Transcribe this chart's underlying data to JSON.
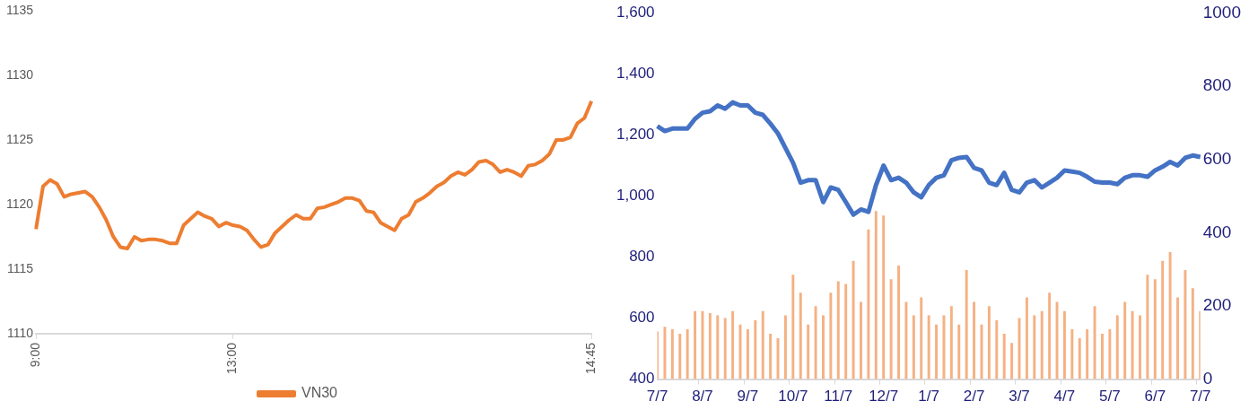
{
  "chart_data": [
    {
      "type": "line",
      "categories": [
        "9:00",
        null,
        null,
        null,
        null,
        null,
        null,
        null,
        null,
        null,
        null,
        null,
        null,
        null,
        null,
        null,
        null,
        null,
        null,
        null,
        null,
        null,
        null,
        null,
        null,
        null,
        null,
        null,
        "13:00",
        null,
        null,
        null,
        null,
        null,
        null,
        null,
        null,
        null,
        null,
        null,
        null,
        null,
        null,
        null,
        null,
        null,
        null,
        null,
        null,
        null,
        null,
        null,
        null,
        null,
        null,
        null,
        null,
        null,
        null,
        null,
        null,
        null,
        null,
        null,
        null,
        null,
        null,
        null,
        null,
        null,
        null,
        null,
        null,
        null,
        null,
        null,
        null,
        null,
        null,
        "14:45"
      ],
      "series": [
        {
          "name": "VN30",
          "color": "#ed7d31",
          "values": [
            1118.1,
            1121.4,
            1121.9,
            1121.6,
            1120.6,
            1120.8,
            1120.9,
            1121.0,
            1120.6,
            1119.8,
            1118.8,
            1117.5,
            1116.7,
            1116.6,
            1117.5,
            1117.2,
            1117.3,
            1117.3,
            1117.2,
            1117.0,
            1117.0,
            1118.4,
            1118.9,
            1119.4,
            1119.1,
            1118.9,
            1118.3,
            1118.6,
            1118.4,
            1118.3,
            1118.0,
            1117.3,
            1116.7,
            1116.9,
            1117.8,
            1118.3,
            1118.8,
            1119.2,
            1118.9,
            1118.9,
            1119.7,
            1119.8,
            1120.0,
            1120.2,
            1120.5,
            1120.5,
            1120.3,
            1119.5,
            1119.4,
            1118.6,
            1118.3,
            1118.0,
            1118.9,
            1119.2,
            1120.2,
            1120.5,
            1120.9,
            1121.4,
            1121.7,
            1122.2,
            1122.5,
            1122.3,
            1122.7,
            1123.3,
            1123.4,
            1123.1,
            1122.5,
            1122.7,
            1122.5,
            1122.2,
            1123.0,
            1123.1,
            1123.4,
            1123.9,
            1125.0,
            1125.0,
            1125.2,
            1126.3,
            1126.7,
            1128.0
          ]
        }
      ],
      "ylim": [
        1110,
        1135
      ],
      "yticks": [
        1110,
        1115,
        1120,
        1125,
        1130,
        1135
      ],
      "grid": false,
      "legend": "bottom"
    },
    {
      "type": "line",
      "categories": [
        "7/7",
        null,
        null,
        null,
        null,
        null,
        "8/7",
        null,
        null,
        null,
        null,
        null,
        "9/7",
        null,
        null,
        null,
        null,
        null,
        "10/7",
        null,
        null,
        null,
        null,
        null,
        "11/7",
        null,
        null,
        null,
        null,
        null,
        "12/7",
        null,
        null,
        null,
        null,
        null,
        "1/7",
        null,
        null,
        null,
        null,
        null,
        "2/7",
        null,
        null,
        null,
        null,
        null,
        "3/7",
        null,
        null,
        null,
        null,
        null,
        "4/7",
        null,
        null,
        null,
        null,
        null,
        "5/7",
        null,
        null,
        null,
        null,
        null,
        "6/7",
        null,
        null,
        null,
        null,
        null,
        "7/7"
      ],
      "series": [
        {
          "type": "line",
          "color": "#4472c4",
          "values": [
            1229,
            1213,
            1221,
            1221,
            1221,
            1253,
            1273,
            1278,
            1297,
            1286,
            1307,
            1297,
            1297,
            1273,
            1266,
            1237,
            1205,
            1157,
            1109,
            1044,
            1052,
            1052,
            980,
            1028,
            1020,
            980,
            939,
            956,
            948,
            1036,
            1100,
            1052,
            1060,
            1044,
            1012,
            996,
            1036,
            1060,
            1068,
            1117,
            1125,
            1128,
            1092,
            1084,
            1044,
            1036,
            1076,
            1020,
            1012,
            1044,
            1052,
            1028,
            1044,
            1060,
            1084,
            1080,
            1076,
            1063,
            1047,
            1044,
            1044,
            1039,
            1060,
            1068,
            1068,
            1063,
            1084,
            1096,
            1112,
            1100,
            1125,
            1133,
            1128
          ]
        },
        {
          "type": "bar",
          "axis": "y2",
          "color": "#f4b183",
          "values": [
            130,
            143,
            136,
            124,
            136,
            186,
            186,
            180,
            174,
            167,
            186,
            149,
            136,
            161,
            186,
            124,
            112,
            174,
            285,
            236,
            149,
            199,
            174,
            236,
            267,
            260,
            323,
            211,
            409,
            459,
            447,
            273,
            310,
            211,
            174,
            223,
            174,
            149,
            174,
            199,
            149,
            298,
            211,
            149,
            199,
            161,
            124,
            99,
            167,
            223,
            174,
            186,
            236,
            211,
            186,
            136,
            112,
            136,
            199,
            124,
            136,
            174,
            211,
            186,
            174,
            285,
            273,
            323,
            347,
            223,
            298,
            248,
            186
          ]
        }
      ],
      "ylim": [
        400,
        1600
      ],
      "yticks": [
        {
          "value": 400,
          "label": "400"
        },
        {
          "value": 600,
          "label": "600"
        },
        {
          "value": 800,
          "label": "800"
        },
        {
          "value": 1000,
          "label": "1,000"
        },
        {
          "value": 1200,
          "label": "1,200"
        },
        {
          "value": 1400,
          "label": "1,400"
        },
        {
          "value": 1600,
          "label": "1,600"
        }
      ],
      "y2lim": [
        0,
        1000
      ],
      "y2ticks": [
        0,
        200,
        400,
        600,
        800,
        1000
      ],
      "grid": false,
      "legend": false
    }
  ]
}
